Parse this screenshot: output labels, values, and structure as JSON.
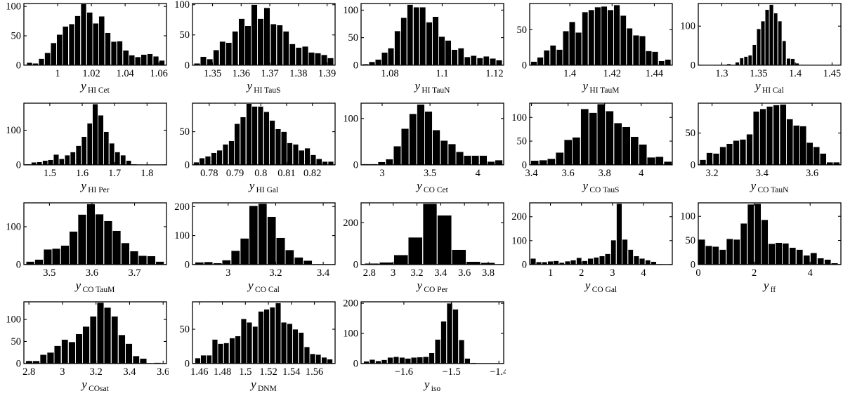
{
  "figure": {
    "background": "#ffffff",
    "bar_color": "#000000",
    "bar_gap_color": "#e9e9e9",
    "axis_color": "#000000",
    "text_color": "#000000"
  },
  "chart_data": [
    {
      "type": "bar",
      "id": "y-HI-Cet",
      "xlabel_main": "y",
      "xlabel_sub": "HI Cet",
      "xlim": [
        0.98,
        1.0645
      ],
      "x0": 0.9815,
      "bin": 0.00357,
      "values": [
        4,
        3,
        11,
        21,
        38,
        52,
        66,
        70,
        84,
        104,
        90,
        71,
        83,
        55,
        40,
        41,
        25,
        17,
        14,
        18,
        19,
        15,
        8
      ],
      "xticks": [
        1,
        1.02,
        1.04,
        1.06
      ],
      "xtick_labels": [
        "1",
        "1.02",
        "1.04",
        "1.06"
      ],
      "ylim": [
        0,
        105
      ],
      "yticks": [
        0,
        50,
        100
      ]
    },
    {
      "type": "bar",
      "id": "y-HI-TauS",
      "xlabel_main": "y",
      "xlabel_sub": "HI TauS",
      "xlim": [
        1.343,
        1.3928
      ],
      "x0": 1.3435,
      "bin": 0.00222,
      "values": [
        3,
        14,
        10,
        25,
        39,
        37,
        56,
        77,
        65,
        100,
        77,
        95,
        68,
        66,
        56,
        35,
        29,
        31,
        21,
        20,
        17,
        12
      ],
      "xticks": [
        1.35,
        1.36,
        1.37,
        1.38,
        1.39
      ],
      "xtick_labels": [
        "1.35",
        "1.36",
        "1.37",
        "1.38",
        "1.39"
      ],
      "ylim": [
        0,
        102
      ],
      "yticks": [
        0,
        50,
        100
      ]
    },
    {
      "type": "bar",
      "id": "y-HI-TauN",
      "xlabel_main": "y",
      "xlabel_sub": "HI TauN",
      "xlim": [
        1.069,
        1.1235
      ],
      "x0": 1.0695,
      "bin": 0.00243,
      "values": [
        2,
        6,
        10,
        23,
        31,
        62,
        86,
        110,
        105,
        105,
        78,
        88,
        52,
        45,
        28,
        31,
        15,
        17,
        13,
        16,
        12,
        9
      ],
      "xticks": [
        1.08,
        1.1,
        1.12
      ],
      "xtick_labels": [
        "1.08",
        "1.1",
        "1.12"
      ],
      "ylim": [
        0,
        112
      ],
      "yticks": [
        0,
        50,
        100
      ]
    },
    {
      "type": "bar",
      "id": "y-HI-TauM",
      "xlabel_main": "y",
      "xlabel_sub": "HI TauM",
      "xlim": [
        1.381,
        1.4485
      ],
      "x0": 1.3815,
      "bin": 0.00302,
      "values": [
        5,
        11,
        21,
        28,
        22,
        48,
        61,
        46,
        75,
        78,
        82,
        83,
        78,
        85,
        70,
        52,
        42,
        41,
        20,
        19,
        6,
        8
      ],
      "xticks": [
        1.4,
        1.42,
        1.44
      ],
      "xtick_labels": [
        "1.4",
        "1.42",
        "1.44"
      ],
      "ylim": [
        0,
        87
      ],
      "yticks": [
        0,
        50
      ]
    },
    {
      "type": "bar",
      "id": "y-HI-Cal",
      "xlabel_main": "y",
      "xlabel_sub": "HI Cal",
      "xlim": [
        1.268,
        1.462
      ],
      "x0": 1.295,
      "bin": 0.0058,
      "values": [
        1,
        1,
        3,
        1,
        7,
        18,
        22,
        25,
        52,
        93,
        113,
        142,
        155,
        133,
        113,
        62,
        17,
        16,
        5,
        1,
        1
      ],
      "xticks": [
        1.3,
        1.35,
        1.4,
        1.45
      ],
      "xtick_labels": [
        "1.3",
        "1.35",
        "1.4",
        "1.45"
      ],
      "ylim": [
        0,
        158
      ],
      "yticks": [
        0,
        100
      ]
    },
    {
      "type": "bar",
      "id": "y-HI-Per",
      "xlabel_main": "y",
      "xlabel_sub": "HI Per",
      "xlim": [
        1.42,
        1.86
      ],
      "x0": 1.425,
      "bin": 0.0172,
      "values": [
        2,
        7,
        8,
        12,
        14,
        30,
        17,
        28,
        37,
        55,
        81,
        120,
        175,
        143,
        95,
        62,
        37,
        28,
        12,
        2,
        1
      ],
      "xticks": [
        1.5,
        1.6,
        1.7,
        1.8
      ],
      "xtick_labels": [
        "1.5",
        "1.6",
        "1.7",
        "1.8"
      ],
      "ylim": [
        0,
        178
      ],
      "yticks": [
        0,
        100
      ]
    },
    {
      "type": "bar",
      "id": "y-HI-Gal",
      "xlabel_main": "y",
      "xlabel_sub": "HI Gal",
      "xlim": [
        0.7735,
        0.8288
      ],
      "x0": 0.7738,
      "bin": 0.00227,
      "values": [
        4,
        10,
        13,
        18,
        22,
        31,
        36,
        62,
        72,
        92,
        88,
        88,
        80,
        67,
        54,
        50,
        33,
        31,
        22,
        25,
        15,
        9,
        5,
        5
      ],
      "xticks": [
        0.78,
        0.79,
        0.8,
        0.81,
        0.82
      ],
      "xtick_labels": [
        "0.78",
        "0.79",
        "0.8",
        "0.81",
        "0.82"
      ],
      "ylim": [
        0,
        93
      ],
      "yticks": [
        0,
        50
      ]
    },
    {
      "type": "bar",
      "id": "y-CO-Cet",
      "xlabel_main": "y",
      "xlabel_sub": "CO Cet",
      "xlim": [
        2.78,
        4.27
      ],
      "x0": 2.79,
      "bin": 0.0817,
      "values": [
        2,
        2,
        6,
        12,
        40,
        78,
        110,
        130,
        115,
        75,
        52,
        45,
        28,
        20,
        20,
        20,
        7,
        10
      ],
      "xticks": [
        3,
        3.5,
        4
      ],
      "xtick_labels": [
        "3",
        "3.5",
        "4"
      ],
      "ylim": [
        0,
        133
      ],
      "yticks": [
        0,
        100
      ]
    },
    {
      "type": "bar",
      "id": "y-CO-TauS",
      "xlabel_main": "y",
      "xlabel_sub": "CO TauS",
      "xlim": [
        3.39,
        4.17
      ],
      "x0": 3.395,
      "bin": 0.0455,
      "values": [
        9,
        10,
        13,
        26,
        53,
        58,
        118,
        110,
        128,
        113,
        88,
        80,
        59,
        43,
        16,
        17,
        7
      ],
      "xticks": [
        3.4,
        3.6,
        3.8,
        4
      ],
      "xtick_labels": [
        "3.4",
        "3.6",
        "3.8",
        "4"
      ],
      "ylim": [
        0,
        130
      ],
      "yticks": [
        0,
        50,
        100
      ]
    },
    {
      "type": "bar",
      "id": "y-CO-TauN",
      "xlabel_main": "y",
      "xlabel_sub": "CO TauN",
      "xlim": [
        3.145,
        3.715
      ],
      "x0": 3.15,
      "bin": 0.0267,
      "values": [
        8,
        19,
        18,
        28,
        33,
        38,
        40,
        48,
        84,
        88,
        92,
        94,
        95,
        72,
        62,
        61,
        35,
        28,
        18,
        4,
        4
      ],
      "xticks": [
        3.2,
        3.4,
        3.6
      ],
      "xtick_labels": [
        "3.2",
        "3.4",
        "3.6"
      ],
      "ylim": [
        0,
        97
      ],
      "yticks": [
        0,
        50
      ]
    },
    {
      "type": "bar",
      "id": "y-CO-TauM",
      "xlabel_main": "y",
      "xlabel_sub": "CO TauM",
      "xlim": [
        3.44,
        3.775
      ],
      "x0": 3.445,
      "bin": 0.0203,
      "values": [
        8,
        13,
        40,
        42,
        50,
        87,
        132,
        160,
        133,
        115,
        89,
        57,
        35,
        23,
        22,
        8
      ],
      "xticks": [
        3.5,
        3.6,
        3.7
      ],
      "xtick_labels": [
        "3.5",
        "3.6",
        "3.7"
      ],
      "ylim": [
        0,
        163
      ],
      "yticks": [
        0,
        100
      ]
    },
    {
      "type": "bar",
      "id": "y-CO-Cal",
      "xlabel_main": "y",
      "xlabel_sub": "CO Cal",
      "xlim": [
        2.85,
        3.45
      ],
      "x0": 2.86,
      "bin": 0.038,
      "values": [
        8,
        9,
        5,
        15,
        48,
        90,
        203,
        210,
        165,
        92,
        50,
        25,
        13,
        2,
        2
      ],
      "xticks": [
        3,
        3.2,
        3.4
      ],
      "xtick_labels": [
        "3",
        "3.2",
        "3.4"
      ],
      "ylim": [
        0,
        213
      ],
      "yticks": [
        0,
        100,
        200
      ]
    },
    {
      "type": "bar",
      "id": "y-CO-Per",
      "xlabel_main": "y",
      "xlabel_sub": "CO Per",
      "xlim": [
        2.73,
        3.93
      ],
      "x0": 2.76,
      "bin": 0.122,
      "values": [
        5,
        10,
        45,
        130,
        290,
        235,
        70,
        13,
        8
      ],
      "xticks": [
        2.8,
        3,
        3.2,
        3.4,
        3.6,
        3.8
      ],
      "xtick_labels": [
        "2.8",
        "3",
        "3.2",
        "3.4",
        "3.6",
        "3.8"
      ],
      "ylim": [
        0,
        295
      ],
      "yticks": [
        0,
        200
      ]
    },
    {
      "type": "bar",
      "id": "y-CO-Gal",
      "xlabel_main": "y",
      "xlabel_sub": "CO Gal",
      "xlim": [
        0.33,
        4.93
      ],
      "x0": 0.35,
      "bin": 0.185,
      "values": [
        25,
        10,
        10,
        13,
        15,
        8,
        14,
        18,
        28,
        15,
        25,
        30,
        35,
        45,
        102,
        255,
        105,
        62,
        35,
        25,
        18,
        12,
        2
      ],
      "xticks": [
        1,
        2,
        3,
        4
      ],
      "xtick_labels": [
        "1",
        "2",
        "3",
        "4"
      ],
      "ylim": [
        0,
        258
      ],
      "yticks": [
        0,
        100,
        200
      ]
    },
    {
      "type": "bar",
      "id": "y-ff",
      "xlabel_main": "y",
      "xlabel_sub": "ff",
      "xlim": [
        0.0,
        5.1
      ],
      "x0": 0.0,
      "bin": 0.25,
      "values": [
        52,
        39,
        37,
        31,
        53,
        52,
        85,
        125,
        126,
        93,
        43,
        45,
        44,
        35,
        31,
        19,
        24,
        13,
        10,
        3
      ],
      "xticks": [
        0,
        2,
        4
      ],
      "xtick_labels": [
        "0",
        "2",
        "4"
      ],
      "ylim": [
        0,
        128
      ],
      "yticks": [
        0,
        50,
        100
      ]
    },
    {
      "type": "bar",
      "id": "y-COsat",
      "xlabel_main": "y",
      "xlabel_sub": "COsat",
      "xlim": [
        2.77,
        3.62
      ],
      "x0": 2.78,
      "bin": 0.0425,
      "values": [
        6,
        6,
        20,
        25,
        40,
        54,
        49,
        67,
        84,
        107,
        138,
        127,
        107,
        65,
        45,
        17,
        11,
        1,
        2
      ],
      "xticks": [
        2.8,
        3,
        3.2,
        3.4,
        3.6
      ],
      "xtick_labels": [
        "2.8",
        "3",
        "3.2",
        "3.4",
        "3.6"
      ],
      "ylim": [
        0,
        140
      ],
      "yticks": [
        0,
        50,
        100
      ]
    },
    {
      "type": "bar",
      "id": "y-DNM",
      "xlabel_main": "y",
      "xlabel_sub": "DNM",
      "xlim": [
        1.454,
        1.578
      ],
      "x0": 1.456,
      "bin": 0.005,
      "values": [
        8,
        12,
        12,
        35,
        29,
        30,
        37,
        40,
        65,
        60,
        54,
        76,
        79,
        82,
        88,
        60,
        58,
        50,
        45,
        24,
        14,
        13,
        9,
        6
      ],
      "xticks": [
        1.46,
        1.48,
        1.5,
        1.52,
        1.54,
        1.56
      ],
      "xtick_labels": [
        "1.46",
        "1.48",
        "1.5",
        "1.52",
        "1.54",
        "1.56"
      ],
      "ylim": [
        0,
        90
      ],
      "yticks": [
        0,
        50
      ]
    },
    {
      "type": "bar",
      "id": "y-iso",
      "xlabel_main": "y",
      "xlabel_sub": "iso",
      "xlim": [
        -1.69,
        -1.39
      ],
      "x0": -1.685,
      "bin": 0.0125,
      "values": [
        7,
        13,
        8,
        12,
        20,
        22,
        20,
        17,
        20,
        21,
        22,
        35,
        80,
        140,
        200,
        180,
        78,
        17,
        2,
        1
      ],
      "xticks": [
        -1.6,
        -1.5,
        -1.4
      ],
      "xtick_labels": [
        "−1.6",
        "−1.5",
        "−1.4"
      ],
      "ylim": [
        0,
        205
      ],
      "yticks": [
        0,
        100,
        200
      ]
    }
  ]
}
